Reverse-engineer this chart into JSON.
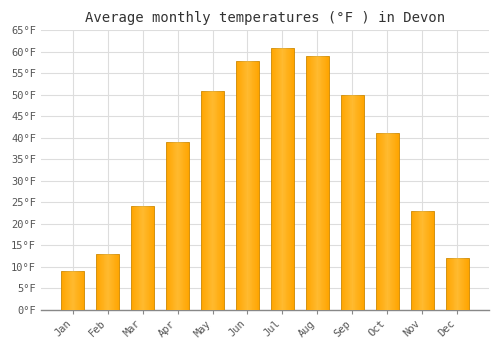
{
  "title": "Average monthly temperatures (°F ) in Devon",
  "months": [
    "Jan",
    "Feb",
    "Mar",
    "Apr",
    "May",
    "Jun",
    "Jul",
    "Aug",
    "Sep",
    "Oct",
    "Nov",
    "Dec"
  ],
  "values": [
    9,
    13,
    24,
    39,
    51,
    58,
    61,
    59,
    50,
    41,
    23,
    12
  ],
  "bar_color_main": "#FFA500",
  "bar_color_light": "#FFD060",
  "bar_edge_color": "#CC8800",
  "background_color": "#FFFFFF",
  "plot_background": "#FFFFFF",
  "grid_color": "#DDDDDD",
  "ylim": [
    0,
    65
  ],
  "yticks": [
    0,
    5,
    10,
    15,
    20,
    25,
    30,
    35,
    40,
    45,
    50,
    55,
    60,
    65
  ],
  "ytick_labels": [
    "0°F",
    "5°F",
    "10°F",
    "15°F",
    "20°F",
    "25°F",
    "30°F",
    "35°F",
    "40°F",
    "45°F",
    "50°F",
    "55°F",
    "60°F",
    "65°F"
  ],
  "title_fontsize": 10,
  "tick_fontsize": 7.5,
  "font_family": "monospace"
}
